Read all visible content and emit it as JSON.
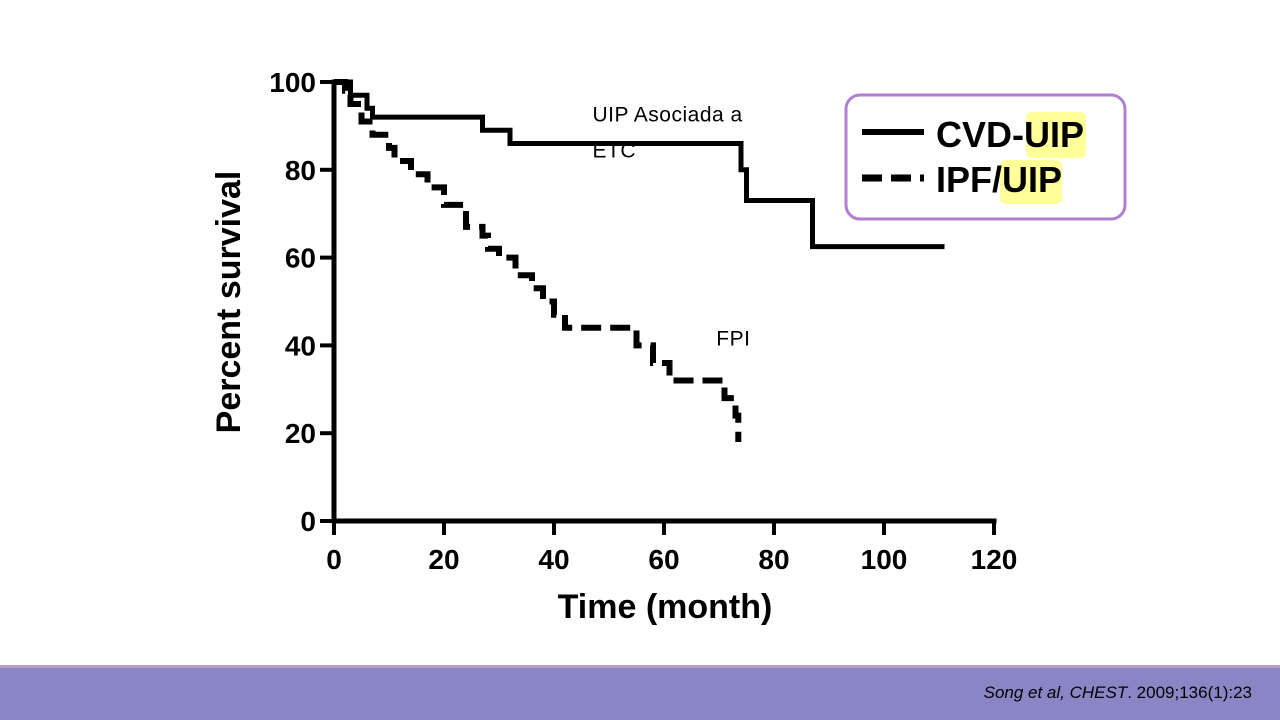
{
  "chart_data": {
    "type": "line",
    "xlabel": "Time (month)",
    "ylabel": "Percent survival",
    "xlim": [
      0,
      120
    ],
    "ylim": [
      0,
      100
    ],
    "xticks": [
      0,
      20,
      40,
      60,
      80,
      100,
      120
    ],
    "yticks": [
      0,
      20,
      40,
      60,
      80,
      100
    ],
    "series": [
      {
        "name": "CVD-UIP",
        "style": "solid",
        "points": [
          [
            0,
            100
          ],
          [
            3,
            100
          ],
          [
            3,
            97
          ],
          [
            6,
            97
          ],
          [
            6,
            94
          ],
          [
            7,
            94
          ],
          [
            7,
            92
          ],
          [
            27,
            92
          ],
          [
            27,
            89
          ],
          [
            32,
            89
          ],
          [
            32,
            86
          ],
          [
            74,
            86
          ],
          [
            74,
            80
          ],
          [
            75,
            80
          ],
          [
            75,
            73
          ],
          [
            87,
            73
          ],
          [
            87,
            62.5
          ],
          [
            111,
            62.5
          ]
        ]
      },
      {
        "name": "IPF/UIP",
        "style": "dashed",
        "points": [
          [
            0,
            100
          ],
          [
            2,
            100
          ],
          [
            2,
            98
          ],
          [
            3,
            98
          ],
          [
            3,
            95
          ],
          [
            5,
            95
          ],
          [
            5,
            91
          ],
          [
            7,
            91
          ],
          [
            7,
            88
          ],
          [
            10,
            88
          ],
          [
            10,
            85
          ],
          [
            11,
            85
          ],
          [
            11,
            82
          ],
          [
            14,
            82
          ],
          [
            14,
            79
          ],
          [
            17,
            79
          ],
          [
            17,
            76
          ],
          [
            20,
            76
          ],
          [
            20,
            72
          ],
          [
            24,
            72
          ],
          [
            24,
            67
          ],
          [
            27,
            67
          ],
          [
            27,
            65
          ],
          [
            28,
            65
          ],
          [
            28,
            62
          ],
          [
            30,
            62
          ],
          [
            30,
            60
          ],
          [
            33,
            60
          ],
          [
            33,
            56
          ],
          [
            36,
            56
          ],
          [
            36,
            53
          ],
          [
            38,
            53
          ],
          [
            38,
            50
          ],
          [
            40,
            50
          ],
          [
            40,
            47
          ],
          [
            42,
            47
          ],
          [
            42,
            44
          ],
          [
            55,
            44
          ],
          [
            55,
            40
          ],
          [
            58,
            40
          ],
          [
            58,
            36
          ],
          [
            61,
            36
          ],
          [
            61,
            32
          ],
          [
            71,
            32
          ],
          [
            71,
            28
          ],
          [
            73,
            28
          ],
          [
            73,
            24
          ],
          [
            73.5,
            24
          ],
          [
            73.5,
            18
          ]
        ]
      }
    ],
    "legend": {
      "position": "top-right",
      "entries": [
        {
          "prefix": "CVD-",
          "highlight": "UIP",
          "style": "solid"
        },
        {
          "prefix": "IPF/",
          "highlight": "UIP",
          "style": "dashed"
        }
      ],
      "border_color": "#b07fd4",
      "highlight_color": "#ffff99"
    },
    "annotations": [
      {
        "lines": [
          "UIP Asociada a",
          "ETC"
        ],
        "x": 47,
        "y": 91
      },
      {
        "lines": [
          "FPI"
        ],
        "x": 69.5,
        "y": 40
      }
    ]
  },
  "footer": {
    "citation_italic": "Song et al, CHEST",
    "citation_rest": ". 2009;136(1):23",
    "bar_color": "#8a86c6"
  }
}
